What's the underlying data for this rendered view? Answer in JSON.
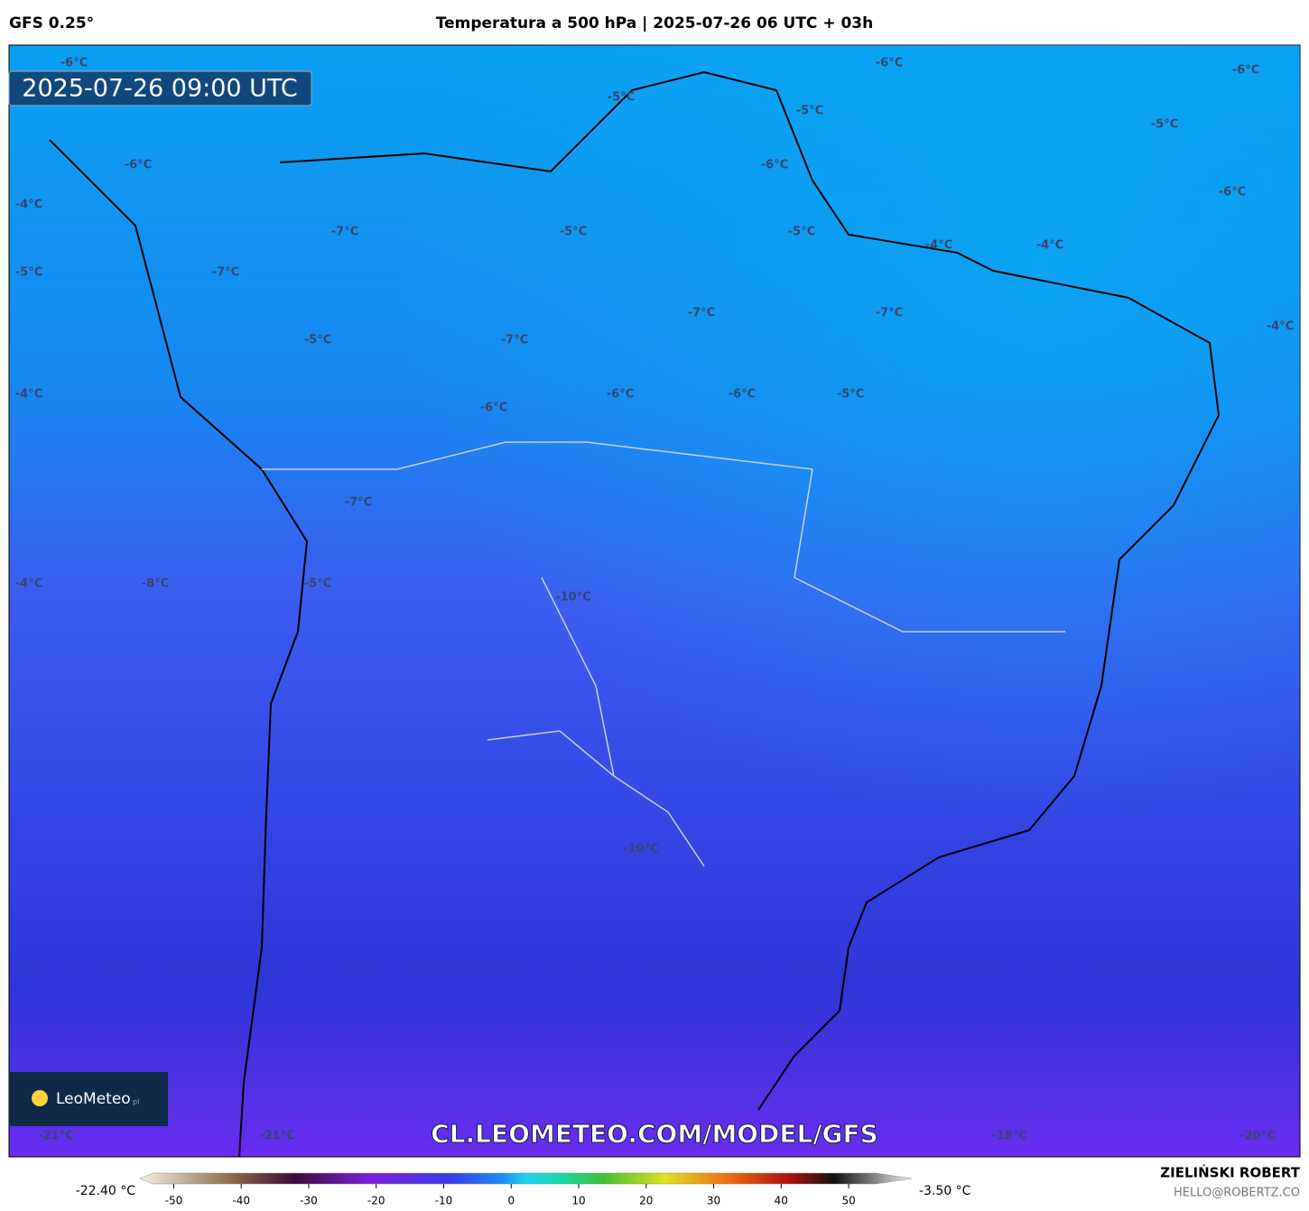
{
  "header": {
    "model": "GFS 0.25°",
    "title": "Temperatura a 500 hPa | 2025-07-26 06 UTC + 03h"
  },
  "map": {
    "valid_time": "2025-07-26 09:00 UTC",
    "logo": "LeoMeteo",
    "logo_suffix": "pl",
    "watermark": "CL.LEOMETEO.COM/MODEL/GFS",
    "contour_labels": [
      "-6°C",
      "-6°C",
      "-6°C",
      "-5°C",
      "-5°C",
      "-5°C",
      "-6°C",
      "-6°C",
      "-6°C",
      "-4°C",
      "-7°C",
      "-5°C",
      "-5°C",
      "-4°C",
      "-4°C",
      "-5°C",
      "-7°C",
      "-7°C",
      "-7°C",
      "-4°C",
      "-5°C",
      "-7°C",
      "-4°C",
      "-6°C",
      "-6°C",
      "-5°C",
      "-6°C",
      "-7°C",
      "-4°C",
      "-8°C",
      "-5°C",
      "-10°C",
      "-10°C",
      "-21°C",
      "-21°C",
      "-18°C",
      "-20°C"
    ]
  },
  "colorbar": {
    "min_label": "-22.40 °C",
    "max_label": "-3.50 °C",
    "lim": [
      -53,
      54
    ],
    "ticks": [
      -50,
      -40,
      -30,
      -20,
      -10,
      0,
      10,
      20,
      30,
      40,
      50
    ]
  },
  "footer": {
    "author": "ZIELIŃSKI ROBERT",
    "contact": "HELLO@ROBERTZ.CO"
  }
}
